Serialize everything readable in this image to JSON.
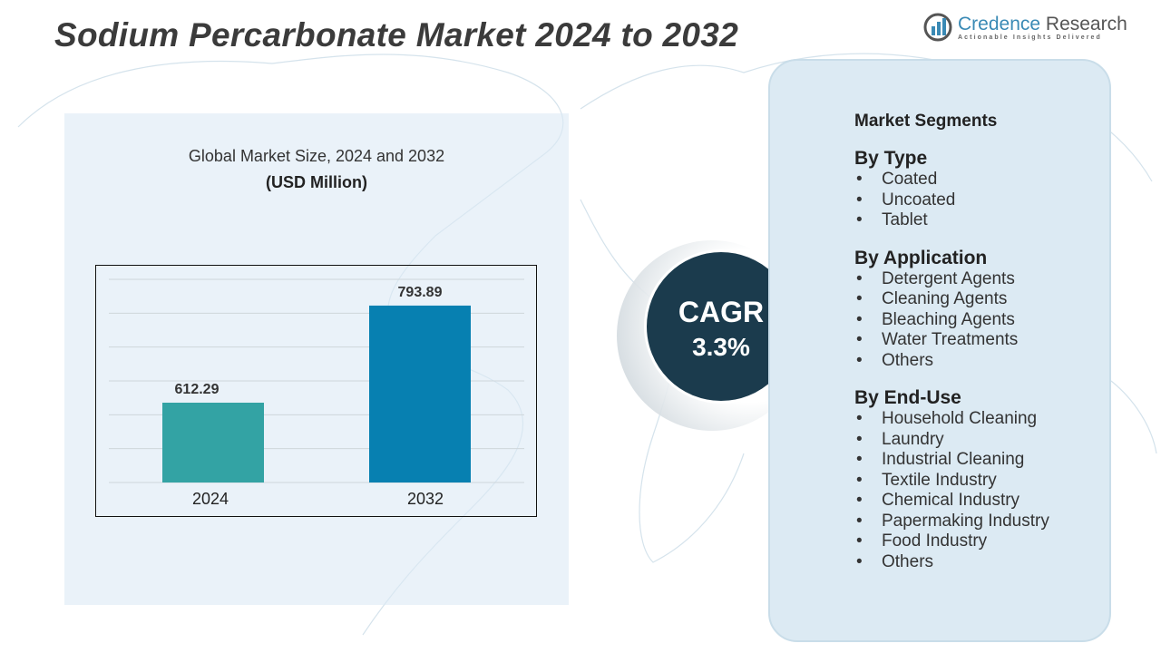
{
  "title": "Sodium Percarbonate Market 2024 to 2032",
  "logo": {
    "name_part1": "Credence",
    "name_part2": "Research",
    "tagline": "Actionable Insights Delivered"
  },
  "chart_data": {
    "type": "bar",
    "title": "Global Market Size, 2024 and 2032",
    "unit": "(USD Million)",
    "categories": [
      "2024",
      "2032"
    ],
    "values": [
      612.29,
      793.89
    ],
    "value_labels": [
      "612.29",
      "793.89"
    ],
    "colors": [
      "#33a3a4",
      "#0780b1"
    ],
    "grid": true,
    "xlabel": "",
    "ylabel": ""
  },
  "cagr": {
    "label": "CAGR",
    "value": "3.3%"
  },
  "segments": {
    "heading": "Market Segments",
    "groups": [
      {
        "title": "By Type",
        "items": [
          "Coated",
          "Uncoated",
          "Tablet"
        ]
      },
      {
        "title": "By Application",
        "items": [
          "Detergent Agents",
          "Cleaning Agents",
          "Bleaching Agents",
          "Water Treatments",
          "Others"
        ]
      },
      {
        "title": "By End-Use",
        "items": [
          "Household Cleaning",
          "Laundry",
          "Industrial Cleaning",
          "Textile Industry",
          "Chemical Industry",
          "Papermaking Industry",
          "Food Industry",
          "Others"
        ]
      }
    ]
  }
}
